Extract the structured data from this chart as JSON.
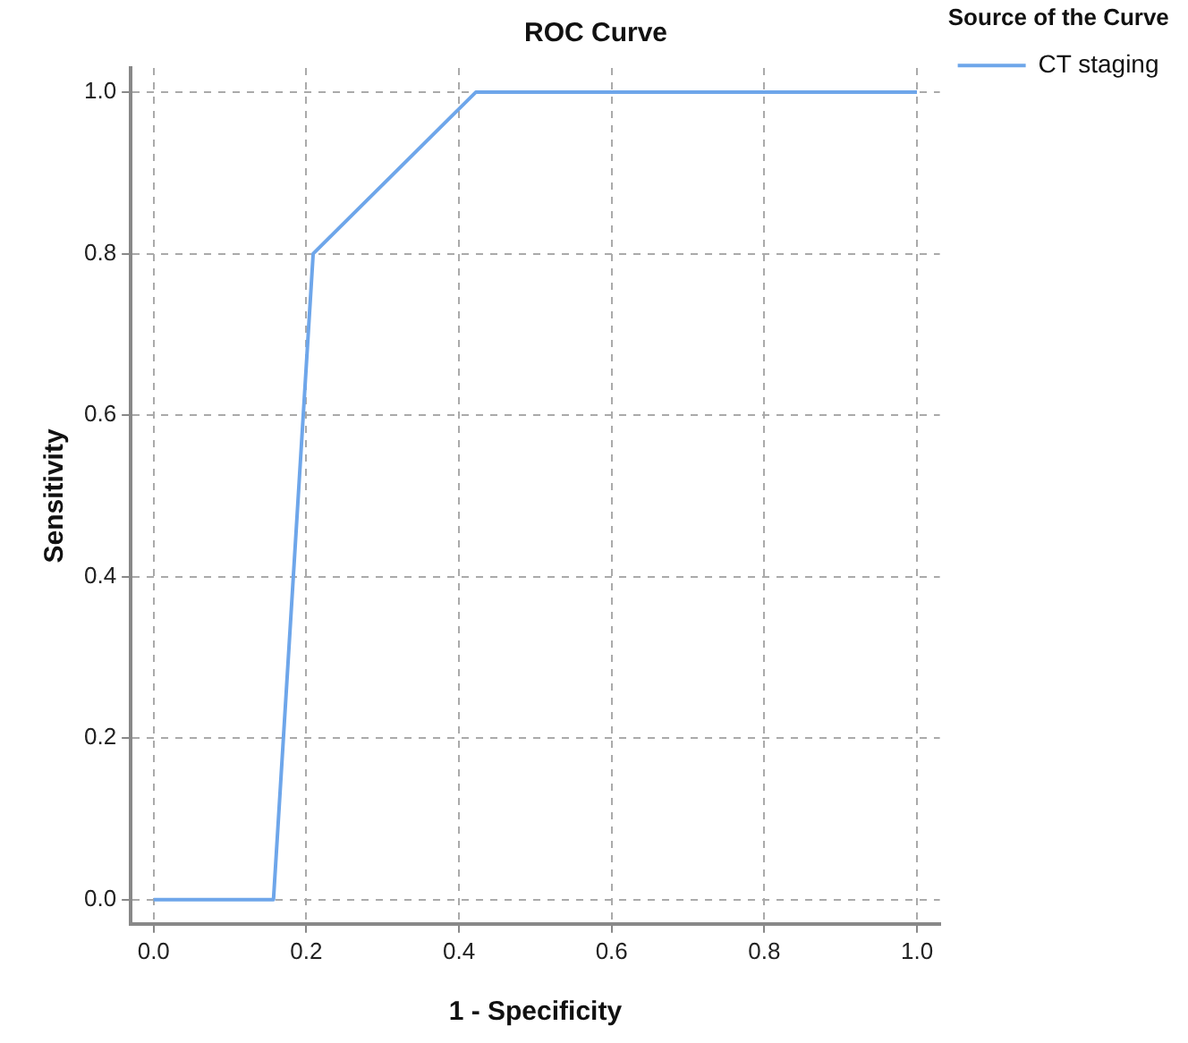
{
  "chart_data": {
    "type": "line",
    "title": "ROC Curve",
    "xlabel": "1 - Specificity",
    "ylabel": "Sensitivity",
    "legend_title": "Source of the Curve",
    "legend": "right",
    "x": [
      0,
      0.157,
      0.209,
      0.422,
      1
    ],
    "series": [
      {
        "name": "CT staging",
        "color": "#6ea6ea",
        "values": [
          0,
          0,
          0.8,
          1,
          1
        ]
      }
    ],
    "xlim": [
      -0.03,
      1.03
    ],
    "ylim": [
      -0.03,
      1.03
    ],
    "xticks": [
      {
        "value": 0,
        "label": "0.0"
      },
      {
        "value": 0.2,
        "label": "0.2"
      },
      {
        "value": 0.4,
        "label": "0.4"
      },
      {
        "value": 0.6,
        "label": "0.6"
      },
      {
        "value": 0.8,
        "label": "0.8"
      },
      {
        "value": 1,
        "label": "1.0"
      }
    ],
    "yticks": [
      {
        "value": 0,
        "label": "0.0"
      },
      {
        "value": 0.2,
        "label": "0.2"
      },
      {
        "value": 0.4,
        "label": "0.4"
      },
      {
        "value": 0.6,
        "label": "0.6"
      },
      {
        "value": 0.8,
        "label": "0.8"
      },
      {
        "value": 1,
        "label": "1.0"
      }
    ],
    "grid": true,
    "marker": "none",
    "line_style": "solid"
  }
}
